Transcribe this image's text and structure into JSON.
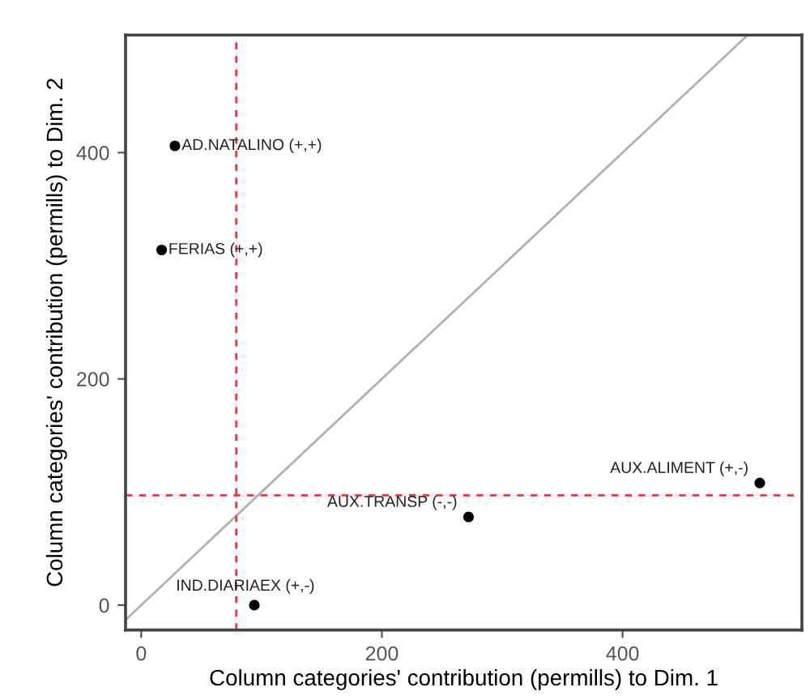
{
  "chart_data": {
    "type": "scatter",
    "xlabel": "Column categories' contribution (permills) to Dim. 1",
    "ylabel": "Column categories' contribution (permills) to Dim. 2",
    "x": [
      28,
      17,
      94,
      272,
      514
    ],
    "series": [
      {
        "color": "#000000",
        "values": [
          406,
          314,
          0,
          78,
          108
        ]
      },
      {
        "type": "line",
        "color": "#b0b0b0",
        "x": [
          -13,
          504
        ],
        "values": [
          -13,
          504
        ]
      }
    ],
    "annotations": [
      {
        "text": "AD.NATALINO (+,+)",
        "x": 28,
        "y": 406
      },
      {
        "text": "FERIAS (+,+)",
        "x": 17,
        "y": 314
      },
      {
        "text": "IND.DIARIAEX (+,-)",
        "x": 94,
        "y": 0
      },
      {
        "text": "AUX.TRANSP (-,-)",
        "x": 272,
        "y": 78
      },
      {
        "text": "AUX.ALIMENT (+,-)",
        "x": 514,
        "y": 108
      }
    ],
    "ref_lines": [
      {
        "axis": "x",
        "value": 79,
        "color": "#ff3030",
        "line_style": "dashed"
      },
      {
        "axis": "y",
        "value": 97,
        "color": "#ff3030",
        "line_style": "dashed"
      }
    ],
    "xlim": [
      -13,
      549
    ],
    "ylim": [
      -22,
      504
    ],
    "xticks": [
      0,
      200,
      400
    ],
    "yticks": [
      0,
      200,
      400
    ],
    "grid": false,
    "legend": false
  }
}
